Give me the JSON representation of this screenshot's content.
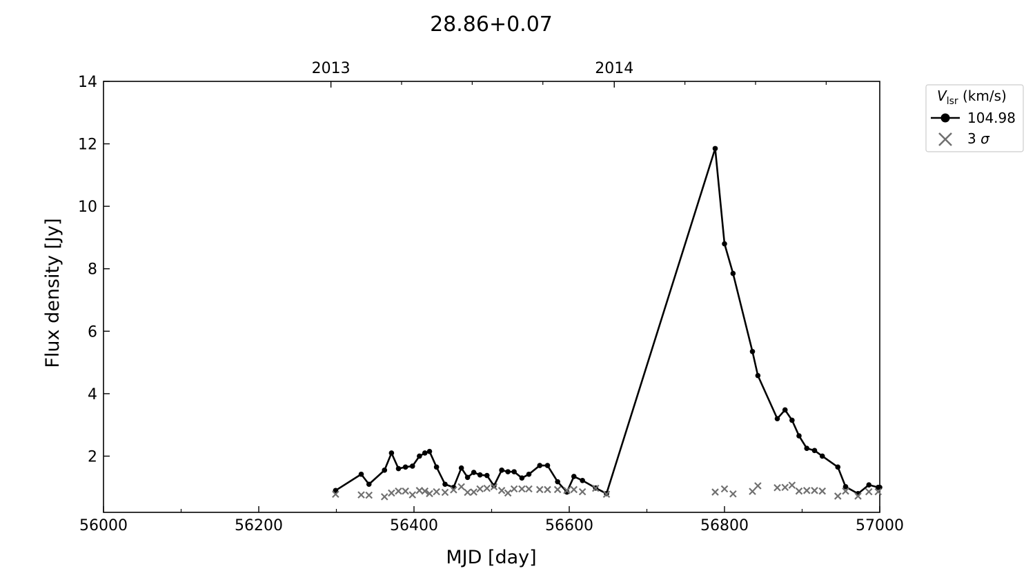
{
  "chart_data": {
    "type": "line",
    "title": "28.86+0.07",
    "xlabel": "MJD [day]",
    "ylabel": "Flux density [Jy]",
    "xlim": [
      56000,
      57000
    ],
    "ylim": [
      0.2,
      14
    ],
    "x_ticks": [
      56000,
      56200,
      56400,
      56600,
      56800,
      57000
    ],
    "x_minor_ticks": [
      56100,
      56300,
      56500,
      56700,
      56900
    ],
    "y_ticks": [
      2,
      4,
      6,
      8,
      10,
      12,
      14
    ],
    "top_axis": {
      "ticks": [
        {
          "label": "2013",
          "x": 56293
        },
        {
          "label": "2014",
          "x": 56658
        }
      ],
      "minor_ticks": [
        56384,
        56475,
        56566,
        56749,
        56840,
        56931
      ]
    },
    "grid": false,
    "legend": {
      "placement": "outside-top-right",
      "title": "V",
      "title_sub": "lsr",
      "title_suffix": " (km/s)"
    },
    "series": [
      {
        "name": "104.98",
        "marker": "circle",
        "color": "#000000",
        "x": [
          56299,
          56332,
          56342,
          56362,
          56371,
          56380,
          56389,
          56398,
          56407,
          56414,
          56420,
          56429,
          56440,
          56451,
          56461,
          56469,
          56477,
          56485,
          56494,
          56503,
          56513,
          56521,
          56529,
          56539,
          56548,
          56562,
          56572,
          56585,
          56597,
          56606,
          56617,
          56634,
          56648,
          56788,
          56800,
          56811,
          56836,
          56843,
          56868,
          56878,
          56887,
          56896,
          56906,
          56916,
          56926,
          56946,
          56956,
          56972,
          56986,
          56998,
          57000
        ],
        "y": [
          0.9,
          1.42,
          1.1,
          1.55,
          2.1,
          1.6,
          1.65,
          1.68,
          2.0,
          2.1,
          2.15,
          1.65,
          1.1,
          1.0,
          1.62,
          1.32,
          1.48,
          1.4,
          1.38,
          1.05,
          1.55,
          1.5,
          1.5,
          1.3,
          1.42,
          1.7,
          1.7,
          1.18,
          0.85,
          1.35,
          1.22,
          0.98,
          0.8,
          11.85,
          8.8,
          7.85,
          5.35,
          4.58,
          3.2,
          3.48,
          3.15,
          2.65,
          2.25,
          2.18,
          2.0,
          1.65,
          1.02,
          0.8,
          1.08,
          1.0,
          1.0
        ]
      },
      {
        "name": "3 σ",
        "name_prefix": "3",
        "name_symbol": "σ",
        "marker": "x",
        "color": "#707070",
        "x": [
          56299,
          56332,
          56342,
          56362,
          56371,
          56380,
          56389,
          56398,
          56407,
          56414,
          56420,
          56429,
          56440,
          56451,
          56461,
          56469,
          56477,
          56485,
          56494,
          56503,
          56513,
          56521,
          56529,
          56539,
          56548,
          56562,
          56572,
          56585,
          56597,
          56606,
          56617,
          56634,
          56648,
          56788,
          56800,
          56811,
          56836,
          56843,
          56868,
          56878,
          56887,
          56896,
          56906,
          56916,
          56926,
          56946,
          56956,
          56972,
          56986,
          56998
        ],
        "y": [
          0.78,
          0.76,
          0.75,
          0.7,
          0.82,
          0.88,
          0.88,
          0.76,
          0.9,
          0.88,
          0.8,
          0.86,
          0.84,
          0.92,
          1.02,
          0.84,
          0.85,
          0.95,
          0.97,
          1.02,
          0.9,
          0.82,
          0.95,
          0.95,
          0.95,
          0.93,
          0.93,
          0.93,
          0.9,
          0.93,
          0.86,
          0.97,
          0.78,
          0.85,
          0.95,
          0.79,
          0.87,
          1.05,
          0.99,
          1.0,
          1.07,
          0.88,
          0.9,
          0.9,
          0.88,
          0.72,
          0.88,
          0.72,
          0.86,
          0.86
        ]
      }
    ]
  }
}
